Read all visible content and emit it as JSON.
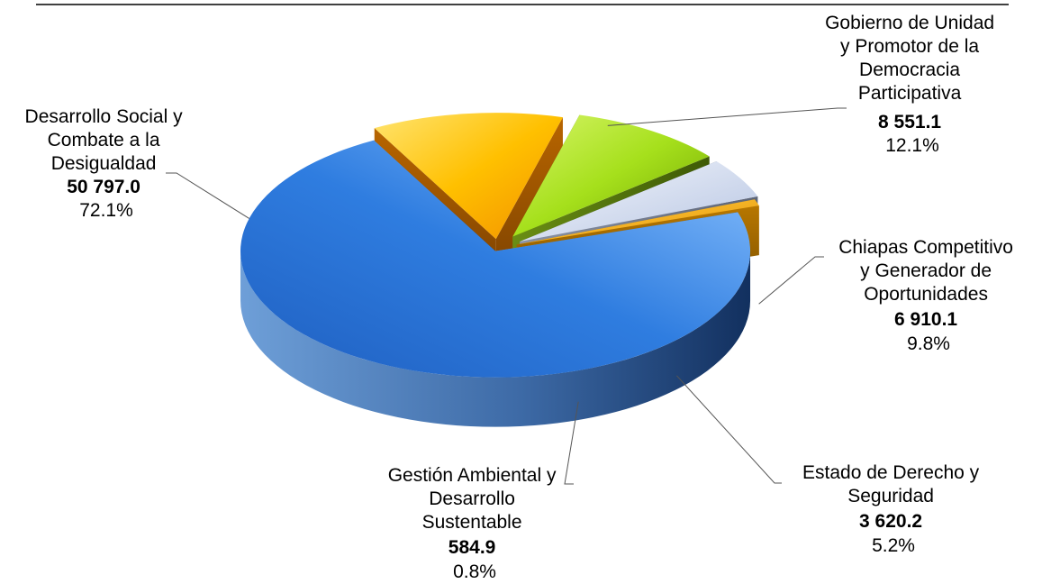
{
  "chart_data": {
    "type": "pie",
    "title": "",
    "slices": [
      {
        "name_lines": [
          "Desarrollo Social y",
          "Combate a la",
          "Desigualdad"
        ],
        "value": 50797.0,
        "value_label": "50 797.0",
        "percent_label": "72.1%",
        "color": "#2e74d6"
      },
      {
        "name_lines": [
          "Gobierno de Unidad",
          "y Promotor de la",
          "Democracia",
          "Participativa"
        ],
        "value": 8551.1,
        "value_label": "8 551.1",
        "percent_label": "12.1%",
        "color": "#ffb300"
      },
      {
        "name_lines": [
          "Chiapas Competitivo",
          "y Generador de",
          "Oportunidades"
        ],
        "value": 6910.1,
        "value_label": "6 910.1",
        "percent_label": "9.8%",
        "color": "#a6e01c"
      },
      {
        "name_lines": [
          "Estado de Derecho y",
          "Seguridad"
        ],
        "value": 3620.2,
        "value_label": "3 620.2",
        "percent_label": "5.2%",
        "color": "#d6dff0"
      },
      {
        "name_lines": [
          "Gestión Ambiental y",
          "Desarrollo",
          "Sustentable"
        ],
        "value": 584.9,
        "value_label": "584.9",
        "percent_label": "0.8%",
        "color": "#f5a800"
      }
    ]
  }
}
